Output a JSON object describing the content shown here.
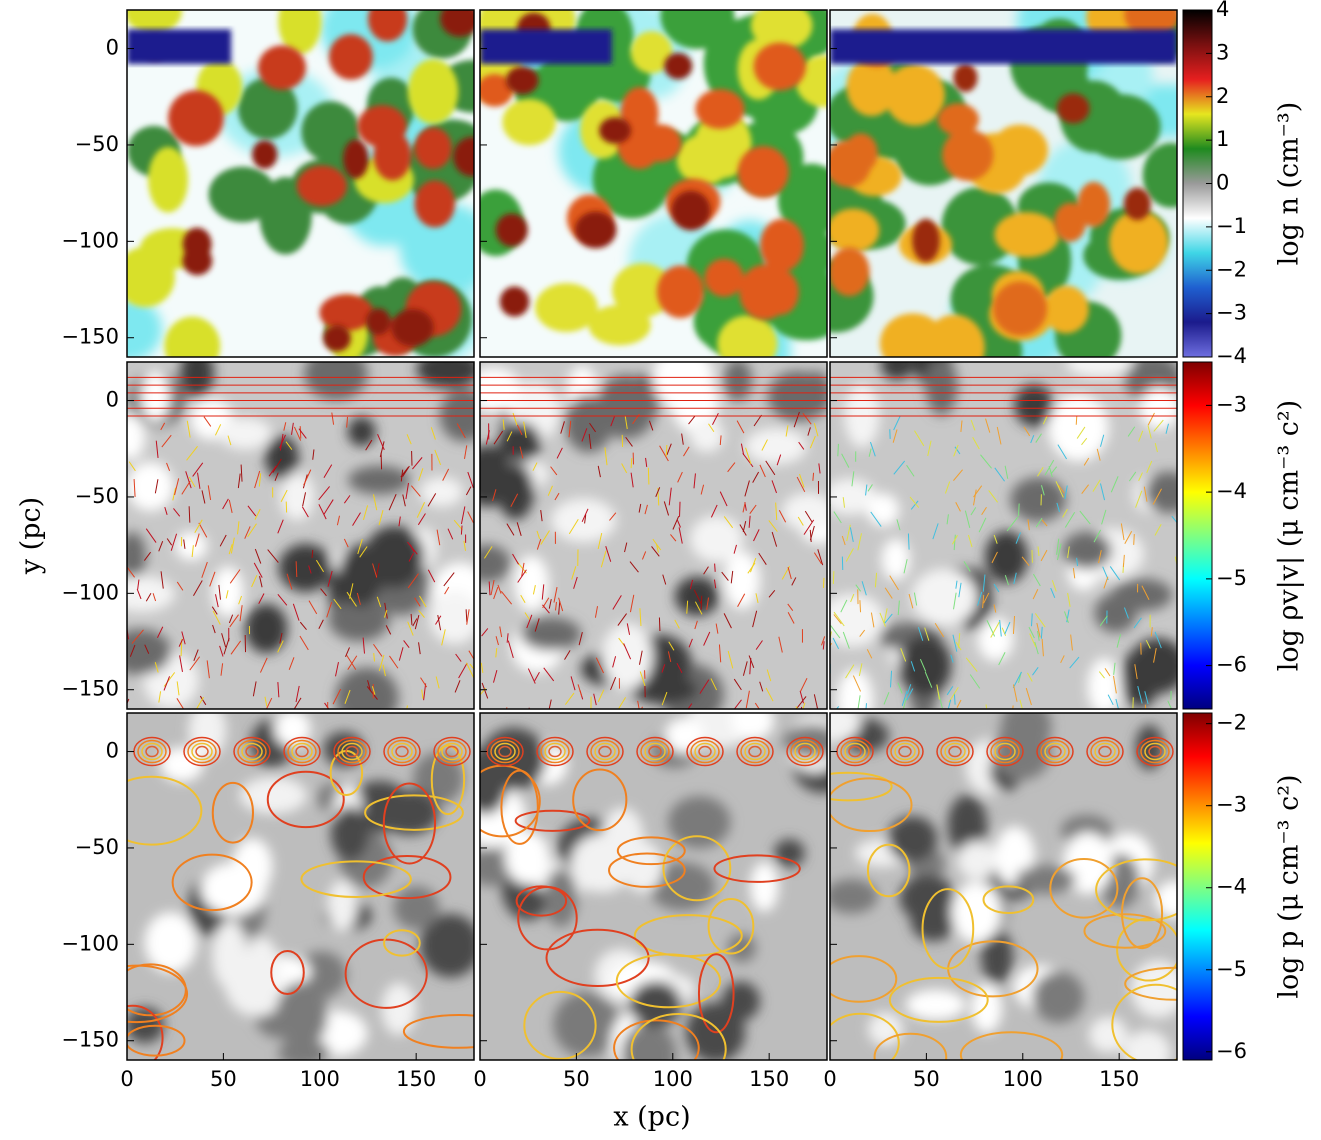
{
  "chart_data": [
    {
      "type": "image",
      "columns": 3,
      "xlim": [
        0,
        180
      ],
      "ylim": [
        -160,
        20
      ],
      "yticks": [
        0,
        {
          "value": -50,
          "label": "−50"
        },
        {
          "value": -100,
          "label": "−100"
        },
        {
          "value": -150,
          "label": "−150"
        }
      ],
      "colorbar": {
        "label": "log n (cm⁻³)",
        "lim": [
          -4,
          4
        ],
        "ticks": [
          {
            "value": 4,
            "label": "4"
          },
          3,
          2,
          1,
          0,
          {
            "value": -1,
            "label": "−1"
          },
          {
            "value": -2,
            "label": "−2"
          },
          {
            "value": -3,
            "label": "−3"
          },
          {
            "value": -4,
            "label": "−4"
          }
        ],
        "cmap": [
          "#6f6fe0",
          "#1b1b8c",
          "#1f5fd0",
          "#3fd6e6",
          "#ffffff",
          "#9a9a9a",
          "#1f8a1f",
          "#e6e61f",
          "#e61f1f",
          "#7a1010",
          "#000000"
        ]
      }
    },
    {
      "type": "image",
      "columns": 3,
      "xlim": [
        0,
        180
      ],
      "ylim": [
        -160,
        20
      ],
      "ylabel": "y (pc)",
      "yticks": [
        0,
        {
          "value": -50,
          "label": "−50"
        },
        {
          "value": -100,
          "label": "−100"
        },
        {
          "value": -150,
          "label": "−150"
        }
      ],
      "colorbar": {
        "label": "log ρv|v| (μ cm⁻³ c²)",
        "lim": [
          -6.5,
          -2.5
        ],
        "ticks": [
          {
            "value": -3,
            "label": "−3"
          },
          {
            "value": -4,
            "label": "−4"
          },
          {
            "value": -5,
            "label": "−5"
          },
          {
            "value": -6,
            "label": "−6"
          }
        ],
        "cmap": [
          "#00007f",
          "#0000ff",
          "#0080ff",
          "#00ffff",
          "#80ff80",
          "#ffff00",
          "#ff8000",
          "#ff0000",
          "#7f0000"
        ]
      }
    },
    {
      "type": "image",
      "columns": 3,
      "xlim": [
        0,
        180
      ],
      "ylim": [
        -160,
        20
      ],
      "xlabel": "x (pc)",
      "xticks": [
        0,
        50,
        100,
        150
      ],
      "yticks": [
        0,
        {
          "value": -50,
          "label": "−50"
        },
        {
          "value": -100,
          "label": "−100"
        },
        {
          "value": -150,
          "label": "−150"
        }
      ],
      "colorbar": {
        "label": "log p (μ cm⁻³ c²)",
        "lim": [
          -6.1,
          -1.87
        ],
        "ticks": [
          {
            "value": -2,
            "label": "−2"
          },
          {
            "value": -3,
            "label": "−3"
          },
          {
            "value": -4,
            "label": "−4"
          },
          {
            "value": -5,
            "label": "−5"
          },
          {
            "value": -6,
            "label": "−6"
          }
        ],
        "cmap": [
          "#00007f",
          "#0000ff",
          "#0080ff",
          "#00ffff",
          "#80ff80",
          "#ffff00",
          "#ff8000",
          "#ff0000",
          "#7f0000"
        ]
      }
    }
  ]
}
